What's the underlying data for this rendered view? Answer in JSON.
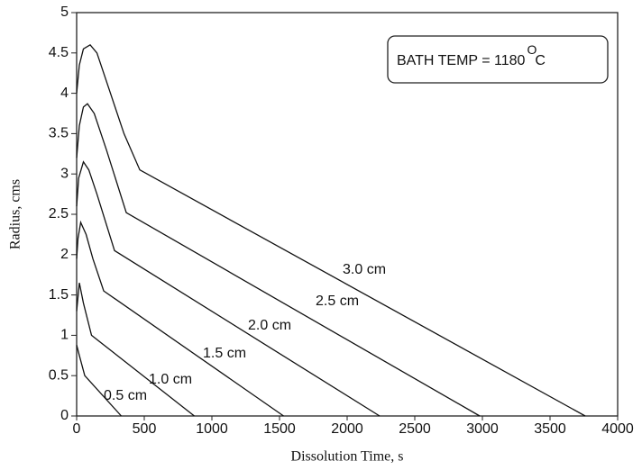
{
  "chart_data": {
    "type": "line",
    "xlabel": "Dissolution Time, s",
    "ylabel": "Radius, cms",
    "annotation": {
      "text": "BATH TEMP = 1180",
      "sup": "O",
      "unit": "C"
    },
    "xlim": [
      0,
      4000
    ],
    "xticks": [
      0,
      500,
      1000,
      1500,
      2000,
      2500,
      3000,
      3500,
      4000
    ],
    "ylim": [
      0,
      5
    ],
    "yticks": [
      0,
      0.5,
      1,
      1.5,
      2,
      2.5,
      3,
      3.5,
      4,
      4.5,
      5
    ],
    "grid": false,
    "series": [
      {
        "name": "3.0 cm",
        "color": "#111111",
        "x": [
          0,
          20,
          50,
          100,
          150,
          250,
          350,
          467,
          3760
        ],
        "values": [
          4.0,
          4.35,
          4.55,
          4.6,
          4.5,
          4.0,
          3.5,
          3.05,
          0
        ]
      },
      {
        "name": "2.5 cm",
        "color": "#111111",
        "x": [
          0,
          20,
          50,
          80,
          130,
          220,
          367,
          2980
        ],
        "values": [
          3.2,
          3.6,
          3.83,
          3.87,
          3.75,
          3.3,
          2.52,
          0
        ]
      },
      {
        "name": "2.0 cm",
        "color": "#111111",
        "x": [
          0,
          15,
          50,
          90,
          150,
          280,
          2240
        ],
        "values": [
          2.6,
          2.95,
          3.15,
          3.05,
          2.75,
          2.05,
          0
        ]
      },
      {
        "name": "1.5 cm",
        "color": "#111111",
        "x": [
          0,
          10,
          30,
          70,
          120,
          200,
          1530
        ],
        "values": [
          1.95,
          2.2,
          2.4,
          2.25,
          1.95,
          1.55,
          0
        ]
      },
      {
        "name": "1.0 cm",
        "color": "#111111",
        "x": [
          0,
          20,
          50,
          110,
          870
        ],
        "values": [
          1.3,
          1.65,
          1.4,
          1.0,
          0
        ]
      },
      {
        "name": "0.5 cm",
        "color": "#111111",
        "x": [
          0,
          20,
          60,
          330
        ],
        "values": [
          0.88,
          0.75,
          0.5,
          0
        ]
      }
    ]
  }
}
